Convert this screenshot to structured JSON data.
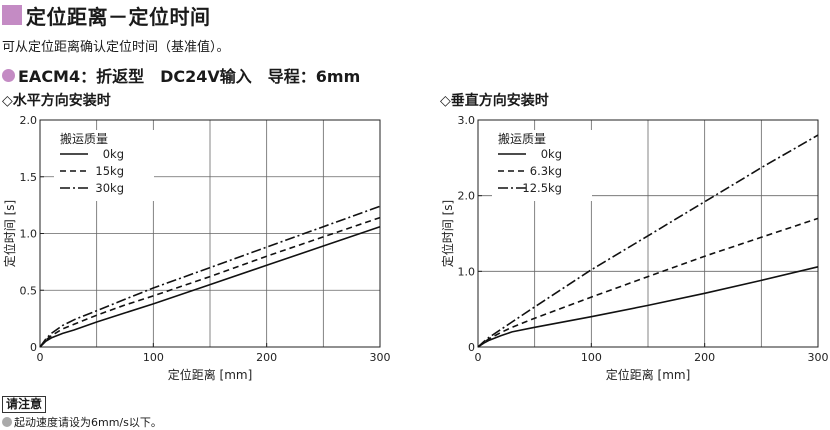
{
  "colors": {
    "accent": "#c48bc4",
    "note_dot": "#aaaaaa",
    "line": "#111111",
    "grid": "#666666"
  },
  "header": {
    "title": "定位距离－定位时间",
    "subtitle": "可从定位距离确认定位时间（基准值）。",
    "model": "EACM4：折返型　DC24V输入　导程：6mm"
  },
  "note": {
    "label": "请注意",
    "text": "起动速度请设为6mm/s以下。"
  },
  "chart_data": [
    {
      "type": "line",
      "title": "◇水平方向安装时",
      "xlabel": "定位距离 [mm]",
      "ylabel": "定位时间 [s]",
      "xlim": [
        0,
        300
      ],
      "ylim": [
        0,
        2.0
      ],
      "xticks": [
        0,
        100,
        200,
        300
      ],
      "xtick_labels": [
        "0",
        "100",
        "200",
        "300"
      ],
      "yticks": [
        0,
        0.5,
        1.0,
        1.5,
        2.0
      ],
      "ytick_labels": [
        "0",
        "0.5",
        "1.0",
        "1.5",
        "2.0"
      ],
      "xgrid": [
        50,
        100,
        150,
        200,
        250
      ],
      "ygrid": [
        0.5,
        1.0,
        1.5
      ],
      "legend_title": "搬运质量",
      "legend_placement": "top-left",
      "series": [
        {
          "name": "0kg",
          "style": "solid",
          "x": [
            0,
            5,
            10,
            20,
            30,
            50,
            75,
            100,
            150,
            200,
            250,
            300
          ],
          "y": [
            0,
            0.05,
            0.08,
            0.12,
            0.15,
            0.22,
            0.3,
            0.38,
            0.55,
            0.72,
            0.89,
            1.06
          ]
        },
        {
          "name": "15kg",
          "style": "dashed",
          "x": [
            0,
            5,
            10,
            20,
            30,
            50,
            75,
            100,
            150,
            200,
            250,
            300
          ],
          "y": [
            0,
            0.06,
            0.1,
            0.16,
            0.2,
            0.28,
            0.37,
            0.45,
            0.62,
            0.8,
            0.97,
            1.14
          ]
        },
        {
          "name": "30kg",
          "style": "dashdot",
          "x": [
            0,
            5,
            10,
            20,
            30,
            50,
            75,
            100,
            150,
            200,
            250,
            300
          ],
          "y": [
            0,
            0.07,
            0.12,
            0.19,
            0.24,
            0.32,
            0.42,
            0.52,
            0.7,
            0.88,
            1.06,
            1.24
          ]
        }
      ]
    },
    {
      "type": "line",
      "title": "◇垂直方向安装时",
      "xlabel": "定位距离 [mm]",
      "ylabel": "定位时间 [s]",
      "xlim": [
        0,
        300
      ],
      "ylim": [
        0,
        3.0
      ],
      "xticks": [
        0,
        100,
        200,
        300
      ],
      "xtick_labels": [
        "0",
        "100",
        "200",
        "300"
      ],
      "yticks": [
        0,
        1.0,
        2.0,
        3.0
      ],
      "ytick_labels": [
        "0",
        "1.0",
        "2.0",
        "3.0"
      ],
      "xgrid": [
        50,
        100,
        150,
        200,
        250
      ],
      "ygrid": [
        1.0,
        2.0
      ],
      "legend_title": "搬运质量",
      "legend_placement": "top-left",
      "series": [
        {
          "name": "0kg",
          "style": "solid",
          "x": [
            0,
            5,
            10,
            20,
            30,
            50,
            100,
            150,
            200,
            250,
            300
          ],
          "y": [
            0,
            0.05,
            0.09,
            0.15,
            0.2,
            0.26,
            0.4,
            0.55,
            0.71,
            0.88,
            1.06
          ]
        },
        {
          "name": "6.3kg",
          "style": "dashed",
          "x": [
            0,
            5,
            10,
            20,
            30,
            50,
            100,
            150,
            200,
            250,
            300
          ],
          "y": [
            0,
            0.06,
            0.11,
            0.19,
            0.26,
            0.38,
            0.66,
            0.93,
            1.2,
            1.45,
            1.7
          ]
        },
        {
          "name": "12.5kg",
          "style": "dashdot",
          "x": [
            0,
            5,
            10,
            20,
            30,
            50,
            100,
            150,
            200,
            250,
            300
          ],
          "y": [
            0,
            0.07,
            0.13,
            0.23,
            0.33,
            0.53,
            1.02,
            1.47,
            1.92,
            2.37,
            2.8
          ]
        }
      ]
    }
  ]
}
